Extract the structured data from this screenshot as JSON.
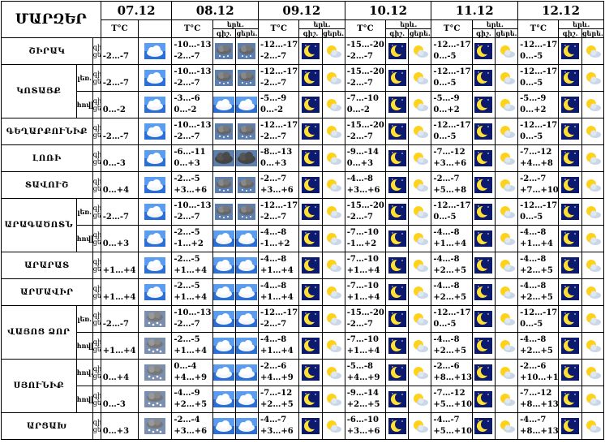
{
  "title": "ՄԱՐԶԵՐ",
  "dates": [
    "07.12",
    "08.12",
    "09.12",
    "10.12",
    "11.12",
    "12.12"
  ],
  "temp_label": "T°C",
  "ds_label": "երև.",
  "day_label": "ցերե.",
  "night_label": "գիշ.",
  "ph_day": "ցեր.",
  "ph_night": "գիշ.",
  "regions": [
    {
      "name": "ՇԻՐԱԿ",
      "subs": [
        null
      ]
    },
    {
      "name": "ԿՈՏԱՅՔ",
      "subs": [
        "լեռ.",
        "հովիտ"
      ]
    },
    {
      "name": "ԳԵՂԱՐՔՈՒՆԻՔ",
      "subs": [
        null
      ]
    },
    {
      "name": "ԼՈՌԻ",
      "subs": [
        null
      ]
    },
    {
      "name": "ՏԱՎՈՒՇ",
      "subs": [
        null
      ]
    },
    {
      "name": "ԱՐԱԳԱԾՈՏՆ",
      "subs": [
        "լեռ.",
        "հովիտ"
      ]
    },
    {
      "name": "ԱՐԱՐԱՏ",
      "subs": [
        null
      ]
    },
    {
      "name": "ԱՐՄԱՎԻՐ",
      "subs": [
        null
      ]
    },
    {
      "name": "ՎԱՅՈՑ ՁՈՐ",
      "subs": [
        "լեռ.",
        "հովիտ"
      ]
    },
    {
      "name": "ՍՅՈՒՆԻՔ",
      "subs": [
        "հով.",
        "հովիտ"
      ]
    },
    {
      "name": "ԱՐՑԱԽ",
      "subs": [
        null
      ]
    }
  ],
  "rows": [
    {
      "d": [
        [
          "",
          "-2…-7",
          "cloud"
        ],
        [
          "-10…-13",
          "-2…-7",
          "overcast",
          "overcast"
        ],
        [
          "-12…-17",
          "-2…-7",
          "moon",
          "sun"
        ],
        [
          "-15…-20",
          "-2…-7",
          "moon",
          "sun"
        ],
        [
          "-12…-17",
          "0…-5",
          "moon",
          "sun"
        ],
        [
          "-12…-17",
          "0…-5",
          "moon",
          "sun"
        ]
      ]
    },
    {
      "d": [
        [
          "",
          "-2…-7",
          "cloud"
        ],
        [
          "-10…-13",
          "-2…-7",
          "overcast",
          "overcast"
        ],
        [
          "-12…-17",
          "-2…-7",
          "moon",
          "sun"
        ],
        [
          "-15…-20",
          "-2…-7",
          "moon",
          "sun"
        ],
        [
          "-12…-17",
          "0…-5",
          "moon",
          "sun"
        ],
        [
          "-12…-17",
          "0…-5",
          "moon",
          "sun"
        ]
      ]
    },
    {
      "d": [
        [
          "",
          "0…-2",
          "cloud"
        ],
        [
          "-3…-6",
          "0…-2",
          "cloud",
          "cloud"
        ],
        [
          "-5…-9",
          "0…-2",
          "moon",
          "sun"
        ],
        [
          "-7…-10",
          "0…-2",
          "moon",
          "sun"
        ],
        [
          "-5…-9",
          "0…+2",
          "moon",
          "sun"
        ],
        [
          "-5…-9",
          "0…+2",
          "moon",
          "sun"
        ]
      ]
    },
    {
      "d": [
        [
          "",
          "-2…-7",
          "cloud"
        ],
        [
          "-10…-13",
          "-2…-7",
          "overcast",
          "overcast"
        ],
        [
          "-12…-17",
          "-2…-7",
          "moon",
          "sun"
        ],
        [
          "-15…-20",
          "-2…-7",
          "moon",
          "sun"
        ],
        [
          "-12…-17",
          "0…-5",
          "moon",
          "sun"
        ],
        [
          "-12…-17",
          "0…-5",
          "moon",
          "sun"
        ]
      ]
    },
    {
      "d": [
        [
          "",
          "0…-3",
          "cloud"
        ],
        [
          "-6…-11",
          "0…+3",
          "dark",
          "dark"
        ],
        [
          "-8…-13",
          "0…+3",
          "moon",
          "sun"
        ],
        [
          "-9…-14",
          "0…+3",
          "moon",
          "sun"
        ],
        [
          "-7…-12",
          "+3…+6",
          "moon",
          "sun"
        ],
        [
          "-7…-12",
          "+4…+8",
          "moon",
          "sun"
        ]
      ]
    },
    {
      "d": [
        [
          "",
          "0…+4",
          "cloud"
        ],
        [
          "-2…-5",
          "+3…+6",
          "overcast",
          "overcast"
        ],
        [
          "-2…-7",
          "+3…+6",
          "moon",
          "sun"
        ],
        [
          "-4…-8",
          "+3…+6",
          "moon",
          "sun"
        ],
        [
          "-2…-7",
          "+5…+8",
          "moon",
          "sun"
        ],
        [
          "-2…-7",
          "+7…+10",
          "moon",
          "sun"
        ]
      ]
    },
    {
      "d": [
        [
          "",
          "-2…-7",
          "cloud"
        ],
        [
          "-10…-13",
          "-2…-7",
          "overcast",
          "overcast"
        ],
        [
          "-12…-17",
          "-2…-7",
          "moon",
          "sun"
        ],
        [
          "-15…-20",
          "-2…-7",
          "moon",
          "sun"
        ],
        [
          "-12…-17",
          "0…-5",
          "moon",
          "sun"
        ],
        [
          "-12…-17",
          "0…-5",
          "moon",
          "sun"
        ]
      ]
    },
    {
      "d": [
        [
          "",
          "0…+3",
          "cloud"
        ],
        [
          "-2…-5",
          "-1…+2",
          "cloud",
          "cloud"
        ],
        [
          "-4…-8",
          "-1…+2",
          "moon",
          "sun"
        ],
        [
          "-7…-10",
          "-1…+2",
          "moon",
          "sun"
        ],
        [
          "-4…-8",
          "+1…+4",
          "moon",
          "sun"
        ],
        [
          "-4…-8",
          "+1…+4",
          "moon",
          "sun"
        ]
      ]
    },
    {
      "d": [
        [
          "",
          "+1…+4",
          "cloud"
        ],
        [
          "-2…-5",
          "+1…+4",
          "cloud",
          "cloud"
        ],
        [
          "-4…-8",
          "+1…+4",
          "moon",
          "sun"
        ],
        [
          "-7…-10",
          "+1…+4",
          "moon",
          "sun"
        ],
        [
          "-4…-8",
          "+2…+5",
          "moon",
          "sun"
        ],
        [
          "-4…-8",
          "+2…+5",
          "moon",
          "sun"
        ]
      ]
    },
    {
      "d": [
        [
          "",
          "+1…+4",
          "cloud"
        ],
        [
          "-2…-5",
          "+1…+4",
          "cloud",
          "cloud"
        ],
        [
          "-4…-8",
          "+1…+4",
          "moon",
          "sun"
        ],
        [
          "-7…-10",
          "+1…+4",
          "moon",
          "sun"
        ],
        [
          "-4…-8",
          "+2…+5",
          "moon",
          "sun"
        ],
        [
          "-4…-8",
          "+2…+5",
          "moon",
          "sun"
        ]
      ]
    },
    {
      "d": [
        [
          "",
          "-2…-7",
          "snow"
        ],
        [
          "-10…-13",
          "-2…-7",
          "cloud",
          "cloud"
        ],
        [
          "-12…-17",
          "-2…-7",
          "moon",
          "sun"
        ],
        [
          "-15…-20",
          "-2…-7",
          "moon",
          "sun"
        ],
        [
          "-12…-17",
          "0…-5",
          "moon",
          "sun"
        ],
        [
          "-12…-17",
          "0…-5",
          "moon",
          "sun"
        ]
      ]
    },
    {
      "d": [
        [
          "",
          "+1…+4",
          "snow"
        ],
        [
          "-2…-5",
          "+1…+4",
          "cloud",
          "cloud"
        ],
        [
          "-4…-8",
          "+1…+4",
          "moon",
          "sun"
        ],
        [
          "-7…-10",
          "+1…+4",
          "moon",
          "sun"
        ],
        [
          "-4…-8",
          "+2…+5",
          "moon",
          "sun"
        ],
        [
          "-4…-8",
          "+2…+5",
          "moon",
          "sun"
        ]
      ]
    },
    {
      "d": [
        [
          "",
          "0…+4",
          "snow"
        ],
        [
          "0…-4",
          "+4…+9",
          "cloud",
          "cloud"
        ],
        [
          "-2…-6",
          "+4…+9",
          "moon",
          "sun"
        ],
        [
          "-5…-8",
          "+4…+9",
          "moon",
          "sun"
        ],
        [
          "-2…-6",
          "+8…+13",
          "moon",
          "sun"
        ],
        [
          "-2…-6",
          "+10…+15",
          "moon",
          "sun"
        ]
      ]
    },
    {
      "d": [
        [
          "",
          "0…-3",
          "snow"
        ],
        [
          "-4…-9",
          "+2…+5",
          "cloud",
          "cloud"
        ],
        [
          "-7…-12",
          "+2…+5",
          "moon",
          "sun"
        ],
        [
          "-9…-14",
          "+2…+5",
          "moon",
          "sun"
        ],
        [
          "-7…-12",
          "+5…+10",
          "moon",
          "sun"
        ],
        [
          "-7…-12",
          "+8…+13",
          "moon",
          "sun"
        ]
      ]
    },
    {
      "d": [
        [
          "",
          "0…+3",
          "snow"
        ],
        [
          "-2…-4",
          "+3…+6",
          "cloud",
          "cloud"
        ],
        [
          "-4…-7",
          "+3…+6",
          "moon",
          "sun"
        ],
        [
          "-6…-10",
          "+3…+6",
          "moon",
          "sun"
        ],
        [
          "-4…-7",
          "+5…+10",
          "moon",
          "sun"
        ],
        [
          "-4…-7",
          "+8…+13",
          "moon",
          "sun"
        ]
      ]
    }
  ]
}
